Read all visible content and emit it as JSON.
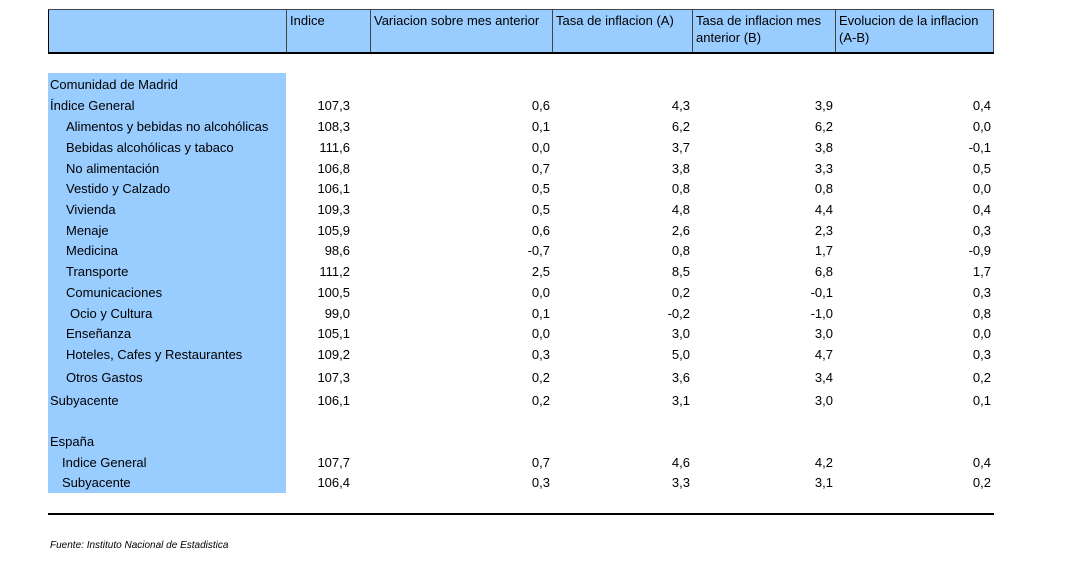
{
  "header": {
    "columns": [
      "",
      "Indice",
      "Variacion sobre mes anterior",
      "Tasa de inflacion (A)",
      "Tasa de inflacion mes anterior (B)",
      "Evolucion de la inflacion (A-B)"
    ]
  },
  "rows": [
    {
      "label": "Comunidad de Madrid",
      "values": [
        "",
        "",
        "",
        "",
        ""
      ]
    },
    {
      "label": "Índice General",
      "values": [
        "107,3",
        "0,6",
        "4,3",
        "3,9",
        "0,4"
      ]
    },
    {
      "label": "Alimentos y bebidas no alcohólicas",
      "values": [
        "108,3",
        "0,1",
        "6,2",
        "6,2",
        "0,0"
      ]
    },
    {
      "label": "Bebidas alcohólicas y tabaco",
      "values": [
        "111,6",
        "0,0",
        "3,7",
        "3,8",
        "-0,1"
      ]
    },
    {
      "label": "No alimentación",
      "values": [
        "106,8",
        "0,7",
        "3,8",
        "3,3",
        "0,5"
      ]
    },
    {
      "label": "Vestido y Calzado",
      "values": [
        "106,1",
        "0,5",
        "0,8",
        "0,8",
        "0,0"
      ]
    },
    {
      "label": "Vivienda",
      "values": [
        "109,3",
        "0,5",
        "4,8",
        "4,4",
        "0,4"
      ]
    },
    {
      "label": "Menaje",
      "values": [
        "105,9",
        "0,6",
        "2,6",
        "2,3",
        "0,3"
      ]
    },
    {
      "label": "Medicina",
      "values": [
        "98,6",
        "-0,7",
        "0,8",
        "1,7",
        "-0,9"
      ]
    },
    {
      "label": "Transporte",
      "values": [
        "111,2",
        "2,5",
        "8,5",
        "6,8",
        "1,7"
      ]
    },
    {
      "label": "Comunicaciones",
      "values": [
        "100,5",
        "0,0",
        "0,2",
        "-0,1",
        "0,3"
      ]
    },
    {
      "label": "Ocio y Cultura",
      "values": [
        "99,0",
        "0,1",
        "-0,2",
        "-1,0",
        "0,8"
      ]
    },
    {
      "label": "Enseñanza",
      "values": [
        "105,1",
        "0,0",
        "3,0",
        "3,0",
        "0,0"
      ]
    },
    {
      "label": "Hoteles, Cafes y Restaurantes",
      "values": [
        "109,2",
        "0,3",
        "5,0",
        "4,7",
        "0,3"
      ]
    },
    {
      "label": "Otros Gastos",
      "values": [
        "107,3",
        "0,2",
        "3,6",
        "3,4",
        "0,2"
      ]
    },
    {
      "label": "Subyacente",
      "values": [
        "106,1",
        "0,2",
        "3,1",
        "3,0",
        "0,1"
      ]
    },
    {
      "label": "España",
      "values": [
        "",
        "",
        "",
        "",
        ""
      ]
    },
    {
      "label": "Indice General",
      "values": [
        "107,7",
        "0,7",
        "4,6",
        "4,2",
        "0,4"
      ]
    },
    {
      "label": "Subyacente",
      "values": [
        "106,4",
        "0,3",
        "3,3",
        "3,1",
        "0,2"
      ]
    }
  ],
  "footer": {
    "source": "Fuente: Instituto Nacional de Estadistica"
  }
}
